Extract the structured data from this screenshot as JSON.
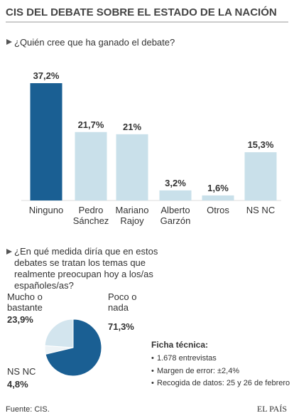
{
  "title": "CIS DEL DEBATE SOBRE EL ESTADO DE LA NACIÓN",
  "chart_data": [
    {
      "type": "bar",
      "title": "¿Quién cree que ha ganado el debate?",
      "categories": [
        "Ninguno",
        "Pedro\nSánchez",
        "Mariano\nRajoy",
        "Alberto\nGarzón",
        "Otros",
        "NS NC"
      ],
      "values": [
        37.2,
        21.7,
        21,
        3.2,
        1.6,
        15.3
      ],
      "value_labels": [
        "37,2%",
        "21,7%",
        "21%",
        "3,2%",
        "1,6%",
        "15,3%"
      ],
      "colors": [
        "#1a5f93",
        "#c9e0ea",
        "#c9e0ea",
        "#c9e0ea",
        "#c9e0ea",
        "#c9e0ea"
      ]
    },
    {
      "type": "pie",
      "title": "¿En qué medida diría que en estos debates se tratan los temas que realmente preocupan hoy a los/as españoles/as?",
      "categories": [
        "Poco o\nnada",
        "NS NC",
        "Mucho o\nbastante"
      ],
      "values": [
        71.3,
        4.8,
        23.9
      ],
      "value_labels": [
        "71,3%",
        "4,8%",
        "23,9%"
      ],
      "colors": [
        "#1a5f93",
        "#eef4f7",
        "#d3e5ee"
      ]
    }
  ],
  "ficha": {
    "title": "Ficha técnica:",
    "items": [
      "1.678 entrevistas",
      "Margen de error: ±2,4%",
      "Recogida de datos: 25 y 26 de febrero"
    ]
  },
  "source": "Fuente: CIS.",
  "brand": "EL PAÍS"
}
